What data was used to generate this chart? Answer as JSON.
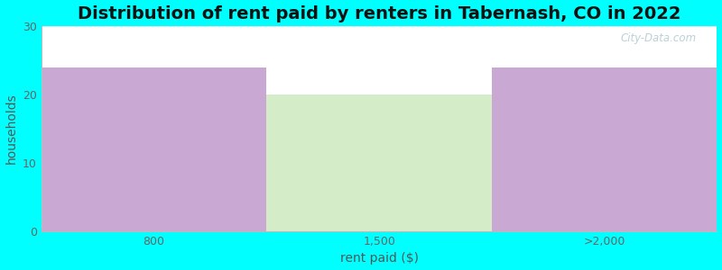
{
  "title": "Distribution of rent paid by renters in Tabernash, CO in 2022",
  "categories": [
    "800",
    "1,500",
    ">2,000"
  ],
  "values": [
    24,
    20,
    24
  ],
  "bar_colors": [
    "#c9a8d4",
    "#d4ecc8",
    "#c9a8d4"
  ],
  "xlabel": "rent paid ($)",
  "ylabel": "households",
  "ylim": [
    0,
    30
  ],
  "yticks": [
    0,
    10,
    20,
    30
  ],
  "background_color": "#00ffff",
  "plot_bg_top": "#ffffff",
  "plot_bg_bottom": "#f0faf0",
  "title_fontsize": 14,
  "axis_label_fontsize": 10,
  "tick_fontsize": 9,
  "watermark": "City-Data.com"
}
